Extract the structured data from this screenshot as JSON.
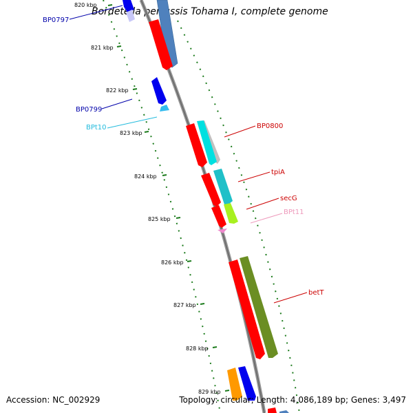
{
  "title": "Bordetella pertussis Tohama I, complete genome",
  "footer": {
    "accession": "Accession: NC_002929",
    "summary": "Topology: circular; Length: 4,086,189 bp; Genes: 3,497"
  },
  "scale": {
    "tick_labels": [
      "820 kbp",
      "821 kbp",
      "822 kbp",
      "823 kbp",
      "824 kbp",
      "825 kbp",
      "826 kbp",
      "827 kbp",
      "828 kbp",
      "829 kbp"
    ]
  },
  "gene_labels": [
    {
      "id": "BP0797",
      "text": "BP0797",
      "color": "#0000aa"
    },
    {
      "id": "BP0799",
      "text": "BP0799",
      "color": "#0000aa"
    },
    {
      "id": "BPt10",
      "text": "BPt10",
      "color": "#22bbdd"
    },
    {
      "id": "BP0800",
      "text": "BP0800",
      "color": "#cc0000"
    },
    {
      "id": "tpiA",
      "text": "tpiA",
      "color": "#cc0000"
    },
    {
      "id": "secG",
      "text": "secG",
      "color": "#cc0000"
    },
    {
      "id": "BPt11",
      "text": "BPt11",
      "color": "#ee99bb"
    },
    {
      "id": "betT",
      "text": "betT",
      "color": "#cc0000"
    }
  ],
  "colors": {
    "backbone": "#888888",
    "tick": "#1a7a1a",
    "cds_red": "#ff0000",
    "cds_blue": "#0000ee",
    "cds_steel": "#4f81bd",
    "cds_cyan": "#00e0e0",
    "cds_teal": "#20c0c8",
    "cds_grey": "#c0c0c0",
    "cds_lime": "#a8f020",
    "cds_olive": "#6b8e23",
    "cds_orange": "#ff9900",
    "trna_cyan": "#33bbee",
    "trna_pink": "#ee88cc"
  }
}
